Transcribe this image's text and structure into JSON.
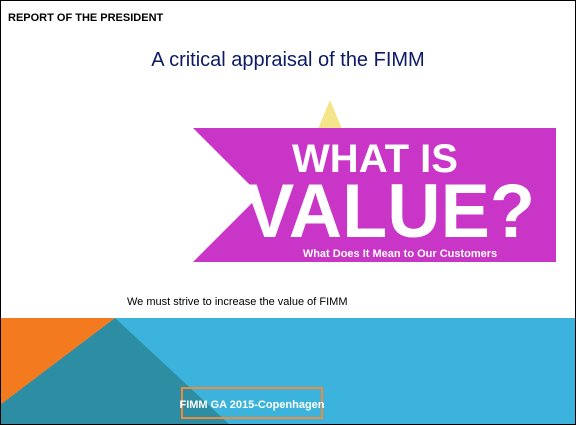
{
  "header": {
    "label": "REPORT OF THE PRESIDENT"
  },
  "title": "A critical appraisal  of the FIMM",
  "image": {
    "line1": "WHAT IS",
    "line2": "VALUE?",
    "caption": "What Does It Mean to Our Customers"
  },
  "body": "We must strive to increase the value of FIMM",
  "footer": "FIMM GA 2015-Copenhagen"
}
